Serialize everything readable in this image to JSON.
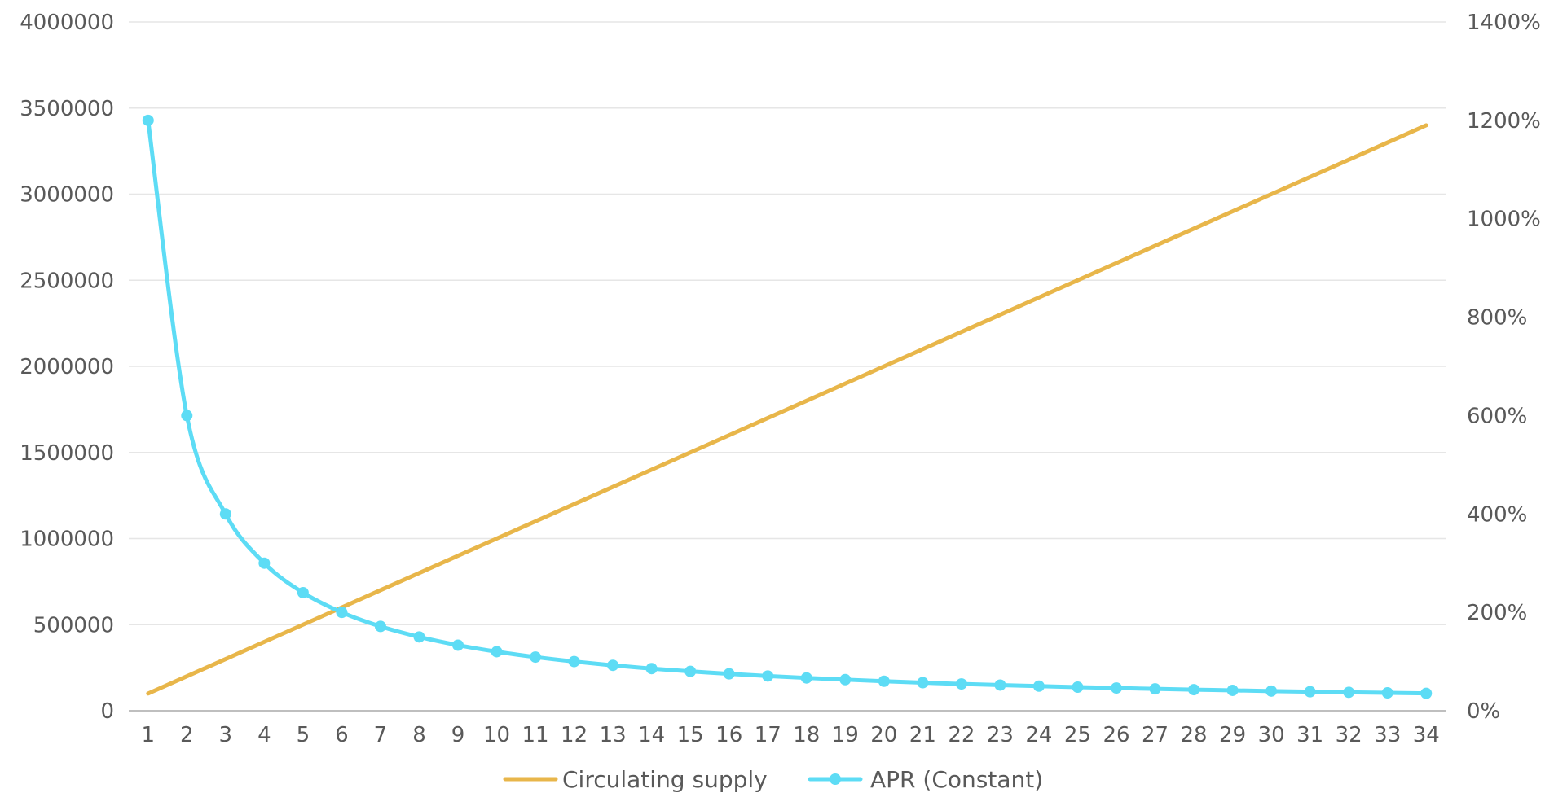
{
  "chart_data": {
    "type": "line",
    "categories": [
      "1",
      "2",
      "3",
      "4",
      "5",
      "6",
      "7",
      "8",
      "9",
      "10",
      "11",
      "12",
      "13",
      "14",
      "15",
      "16",
      "17",
      "18",
      "19",
      "20",
      "21",
      "22",
      "23",
      "24",
      "25",
      "26",
      "27",
      "28",
      "29",
      "30",
      "31",
      "32",
      "33",
      "34"
    ],
    "series": [
      {
        "name": "Circulating supply",
        "axis": "left",
        "color": "#E8B64A",
        "markers": false,
        "values": [
          100000,
          200000,
          300000,
          400000,
          500000,
          600000,
          700000,
          800000,
          900000,
          1000000,
          1100000,
          1200000,
          1300000,
          1400000,
          1500000,
          1600000,
          1700000,
          1800000,
          1900000,
          2000000,
          2100000,
          2200000,
          2300000,
          2400000,
          2500000,
          2600000,
          2700000,
          2800000,
          2900000,
          3000000,
          3100000,
          3200000,
          3300000,
          3400000
        ]
      },
      {
        "name": "APR (Constant)",
        "axis": "right",
        "color": "#5DDCF5",
        "markers": true,
        "values": [
          1200,
          600,
          400,
          300,
          240,
          200,
          171.4,
          150,
          133.3,
          120,
          109.1,
          100,
          92.3,
          85.7,
          80,
          75,
          70.6,
          66.7,
          63.2,
          60,
          57.1,
          54.5,
          52.2,
          50,
          48,
          46.2,
          44.4,
          42.9,
          41.4,
          40,
          38.7,
          37.5,
          36.4,
          35.3
        ]
      }
    ],
    "y_left": {
      "ylim": [
        0,
        4000000
      ],
      "ticks": [
        "0",
        "500000",
        "1000000",
        "1500000",
        "2000000",
        "2500000",
        "3000000",
        "3500000",
        "4000000"
      ]
    },
    "y_right": {
      "ylim": [
        0,
        1400
      ],
      "ticks": [
        "0%",
        "200%",
        "400%",
        "600%",
        "800%",
        "1000%",
        "1200%",
        "1400%"
      ]
    },
    "grid": true,
    "legend_position": "bottom",
    "title": "",
    "xlabel": "",
    "ylabel": ""
  }
}
